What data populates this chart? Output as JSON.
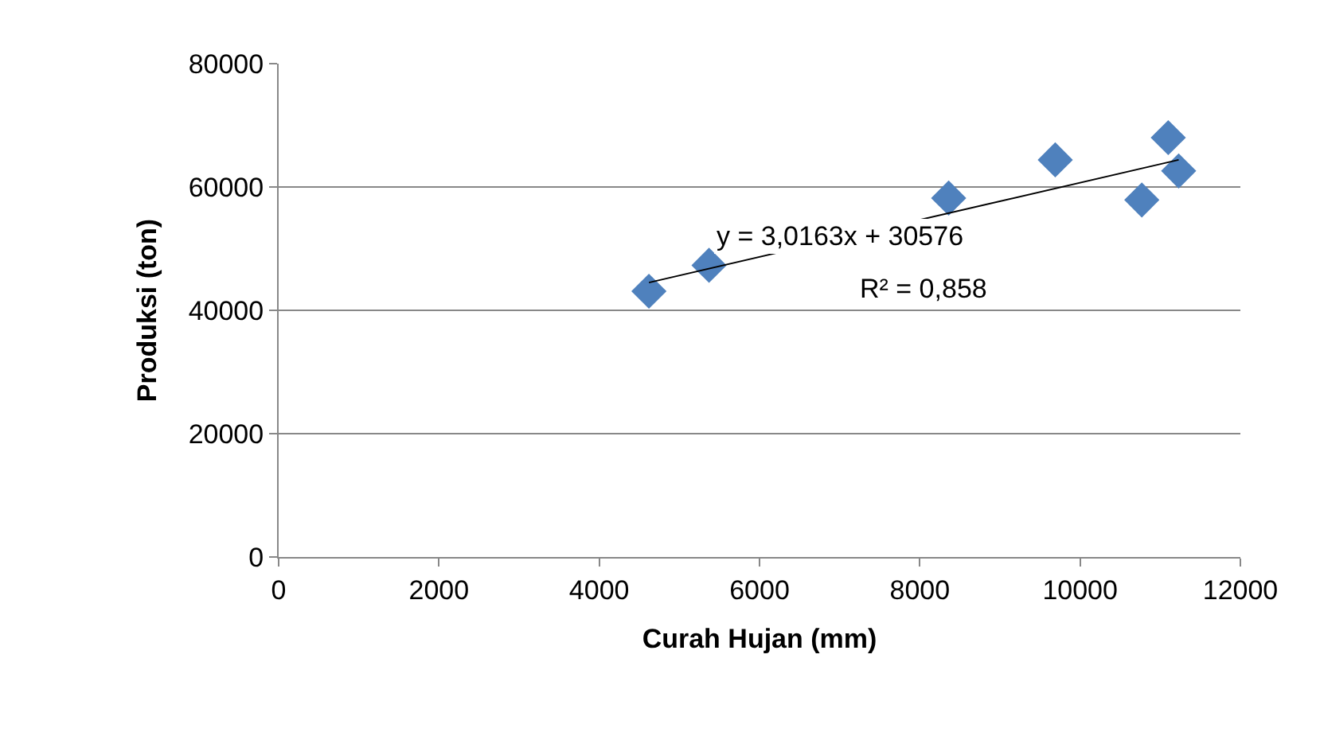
{
  "chart_data": {
    "type": "scatter",
    "xlabel": "Curah Hujan (mm)",
    "ylabel": "Produksi (ton)",
    "xlim": [
      0,
      12000
    ],
    "xticks": [
      0,
      2000,
      4000,
      6000,
      8000,
      10000,
      12000
    ],
    "ylim": [
      0,
      80000
    ],
    "yticks": [
      0,
      20000,
      40000,
      60000,
      80000
    ],
    "grid": "y",
    "marker": "diamond",
    "annotations": [
      "y = 3,0163x + 30576",
      "R² = 0,858"
    ],
    "series": [
      {
        "color": "#4f81bd",
        "x": [
          4620,
          5370,
          8360,
          9690,
          10770,
          11100,
          11230
        ],
        "values": [
          43100,
          47300,
          58200,
          64400,
          57900,
          68000,
          62600
        ]
      },
      {
        "type": "line",
        "color": "#000000",
        "marker": "none",
        "x": [
          4620,
          11230
        ],
        "values": [
          44500,
          64400
        ]
      }
    ]
  }
}
